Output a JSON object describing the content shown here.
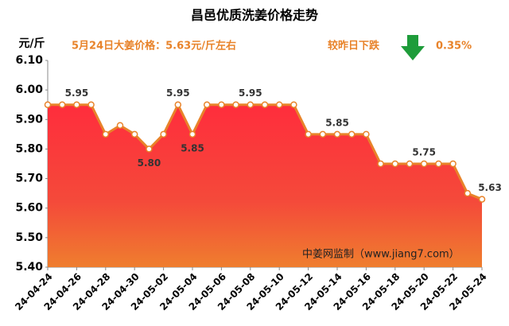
{
  "chart_data": {
    "type": "area",
    "title": "昌邑优质洗姜价格走势",
    "y_label": "元/斤",
    "annotations": {
      "price_note": "5月24日大姜价格：5.63元/斤左右",
      "change_label": "较昨日下跌",
      "change_value": "0.35%",
      "source": "中姜网监制（www.jiang7.com）"
    },
    "categories": [
      "24-04-24",
      null,
      "24-04-26",
      null,
      "24-04-28",
      null,
      "24-04-30",
      null,
      "24-05-02",
      null,
      "24-05-04",
      null,
      "24-05-06",
      null,
      "24-05-08",
      null,
      "24-05-10",
      null,
      "24-05-12",
      null,
      "24-05-14",
      null,
      "24-05-16",
      null,
      "24-05-18",
      null,
      "24-05-20",
      null,
      "24-05-22",
      null,
      "24-05-24"
    ],
    "values": [
      5.95,
      5.95,
      5.95,
      5.95,
      5.85,
      5.88,
      5.85,
      5.8,
      5.85,
      5.95,
      5.85,
      5.95,
      5.95,
      5.95,
      5.95,
      5.95,
      5.95,
      5.95,
      5.85,
      5.85,
      5.85,
      5.85,
      5.85,
      5.75,
      5.75,
      5.75,
      5.75,
      5.75,
      5.75,
      5.65,
      5.63
    ],
    "value_labels": [
      null,
      null,
      "5.95",
      null,
      null,
      null,
      null,
      "5.80",
      null,
      "5.95",
      "5.85",
      null,
      null,
      null,
      "5.95",
      null,
      null,
      null,
      null,
      null,
      "5.85",
      null,
      null,
      null,
      null,
      null,
      "5.75",
      null,
      null,
      null,
      "5.63"
    ],
    "line_color": "#e8832a",
    "ylim": [
      5.4,
      6.1
    ],
    "yticks": [
      {
        "value": 5.4,
        "label": "5.40"
      },
      {
        "value": 5.5,
        "label": "5.50"
      },
      {
        "value": 5.6,
        "label": "5.60"
      },
      {
        "value": 5.7,
        "label": "5.70"
      },
      {
        "value": 5.8,
        "label": "5.80"
      },
      {
        "value": 5.9,
        "label": "5.90"
      },
      {
        "value": 6.0,
        "label": "6.00"
      },
      {
        "value": 6.1,
        "label": "6.10"
      }
    ]
  }
}
